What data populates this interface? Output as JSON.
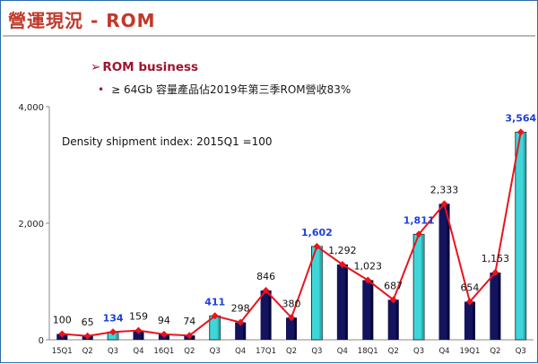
{
  "page": {
    "title": "營運現況 - ROM"
  },
  "bullets": {
    "heading_arrow": "➢",
    "heading": "ROM business",
    "sub_dot": "•",
    "sub": "≥ 64Gb 容量產品佔2019年第三季ROM營收83%"
  },
  "annotation": "Density shipment index: 2015Q1 =100",
  "chart_data": {
    "type": "bar",
    "title": "",
    "xlabel": "",
    "ylabel": "",
    "ylim": [
      0,
      4000
    ],
    "yticks": [
      0,
      2000,
      4000
    ],
    "ytick_labels": [
      "0",
      "2,000",
      "4,000"
    ],
    "categories": [
      "15Q1",
      "Q2",
      "Q3",
      "Q4",
      "16Q1",
      "Q2",
      "Q3",
      "Q4",
      "17Q1",
      "Q2",
      "Q3",
      "Q4",
      "18Q1",
      "Q2",
      "Q3",
      "Q4",
      "19Q1",
      "Q2",
      "Q3"
    ],
    "values": [
      100,
      65,
      134,
      159,
      94,
      74,
      411,
      298,
      846,
      380,
      1602,
      1292,
      1023,
      687,
      1811,
      2333,
      654,
      1153,
      3564
    ],
    "value_labels": [
      "100",
      "65",
      "134",
      "159",
      "94",
      "74",
      "411",
      "298",
      "846",
      "380",
      "1,602",
      "1,292",
      "1,023",
      "687",
      "1,811",
      "2,333",
      "654",
      "1,153",
      "3,564"
    ],
    "highlight": [
      false,
      false,
      true,
      false,
      false,
      false,
      true,
      false,
      false,
      false,
      true,
      false,
      false,
      false,
      true,
      false,
      false,
      false,
      true
    ],
    "line_overlay": true,
    "colors": {
      "bar_dark": "#14145e",
      "bar_highlight": "#3fd6d9",
      "line": "#e8141e",
      "label_default": "#111111",
      "label_highlight": "#1f3fd6"
    }
  }
}
